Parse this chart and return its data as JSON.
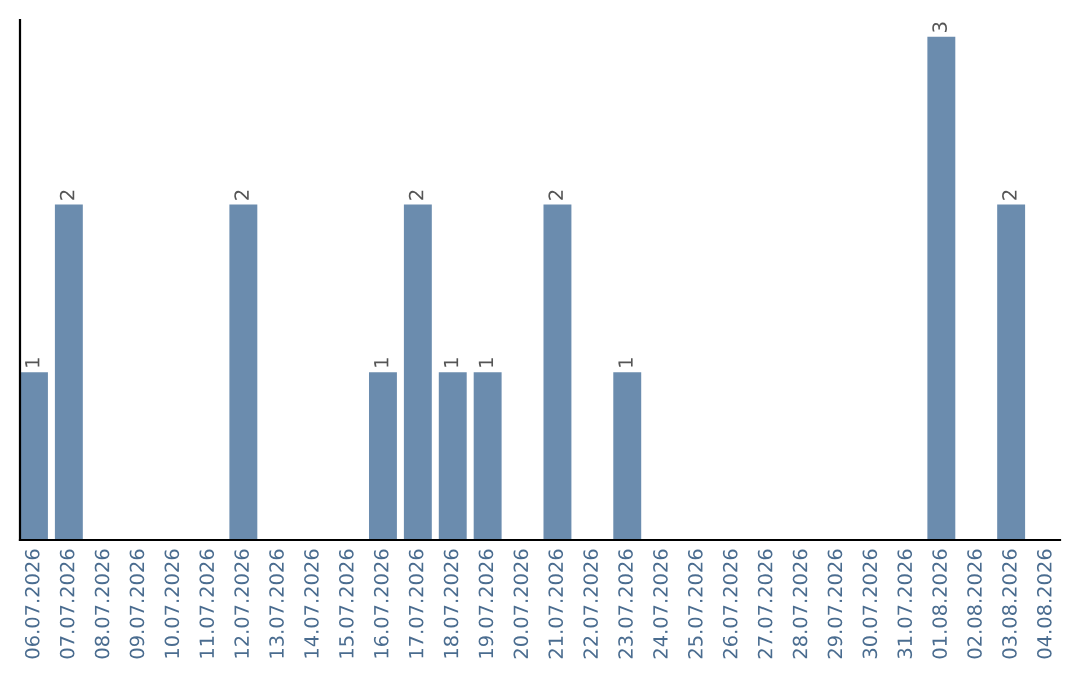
{
  "chart_data": {
    "type": "bar",
    "categories": [
      "06.07.2026",
      "07.07.2026",
      "08.07.2026",
      "09.07.2026",
      "10.07.2026",
      "11.07.2026",
      "12.07.2026",
      "13.07.2026",
      "14.07.2026",
      "15.07.2026",
      "16.07.2026",
      "17.07.2026",
      "18.07.2026",
      "19.07.2026",
      "20.07.2026",
      "21.07.2026",
      "22.07.2026",
      "23.07.2026",
      "24.07.2026",
      "25.07.2026",
      "26.07.2026",
      "27.07.2026",
      "28.07.2026",
      "29.07.2026",
      "30.07.2026",
      "31.07.2026",
      "01.08.2026",
      "02.08.2026",
      "03.08.2026",
      "04.08.2026"
    ],
    "values": [
      1,
      2,
      0,
      0,
      0,
      0,
      2,
      0,
      0,
      0,
      1,
      2,
      1,
      1,
      0,
      2,
      0,
      1,
      0,
      0,
      0,
      0,
      0,
      0,
      0,
      0,
      3,
      0,
      2,
      0
    ],
    "value_labels": [
      "1",
      "2",
      null,
      null,
      null,
      null,
      "2",
      null,
      null,
      null,
      "1",
      "2",
      "1",
      "1",
      null,
      "2",
      null,
      "1",
      null,
      null,
      null,
      null,
      null,
      null,
      null,
      null,
      "3",
      null,
      "2",
      null
    ],
    "color": "#6b8cae",
    "ylim": [
      0,
      3.1
    ],
    "tick_labels": "x",
    "grid": false,
    "legend": false
  }
}
